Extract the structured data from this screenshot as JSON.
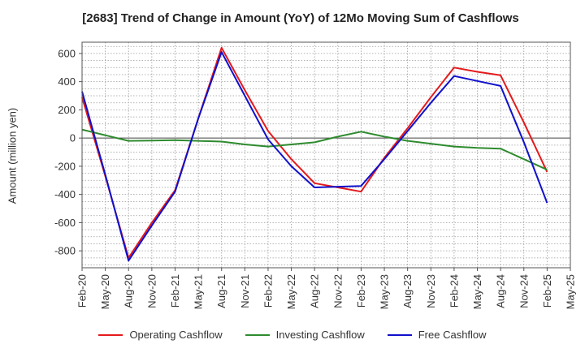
{
  "chart_data": {
    "type": "line",
    "title": "[2683]  Trend of Change in Amount (YoY) of 12Mo Moving Sum of Cashflows",
    "xlabel": "",
    "ylabel": "Amount (million yen)",
    "ylim": [
      -920,
      680
    ],
    "yticks": [
      600,
      400,
      200,
      0,
      -200,
      -400,
      -600,
      -800
    ],
    "categories": [
      "Feb-20",
      "May-20",
      "Aug-20",
      "Nov-20",
      "Feb-21",
      "May-21",
      "Aug-21",
      "Nov-21",
      "Feb-22",
      "May-22",
      "Aug-22",
      "Nov-22",
      "Feb-23",
      "May-23",
      "Aug-23",
      "Nov-23",
      "Feb-24",
      "May-24",
      "Aug-24",
      "Nov-24",
      "Feb-25",
      "May-25"
    ],
    "grid": true,
    "legend_position": "bottom",
    "series": [
      {
        "name": "Operating Cashflow",
        "color": "#e41a1c",
        "values": [
          290,
          -270,
          -850,
          -600,
          -370,
          140,
          640,
          340,
          50,
          -150,
          -320,
          -350,
          -380,
          -140,
          70,
          290,
          500,
          470,
          445,
          110,
          -240,
          null
        ]
      },
      {
        "name": "Investing Cashflow",
        "color": "#2e8b2e",
        "values": [
          60,
          20,
          -20,
          -18,
          -15,
          -20,
          -25,
          -45,
          -60,
          -45,
          -30,
          10,
          45,
          10,
          -20,
          -40,
          -60,
          -70,
          -75,
          -150,
          -225,
          null
        ]
      },
      {
        "name": "Free Cashflow",
        "color": "#1010cc",
        "values": [
          330,
          -260,
          -870,
          -620,
          -380,
          140,
          610,
          300,
          -10,
          -200,
          -350,
          -345,
          -340,
          -150,
          50,
          250,
          440,
          405,
          370,
          -30,
          -460,
          null
        ]
      }
    ]
  }
}
